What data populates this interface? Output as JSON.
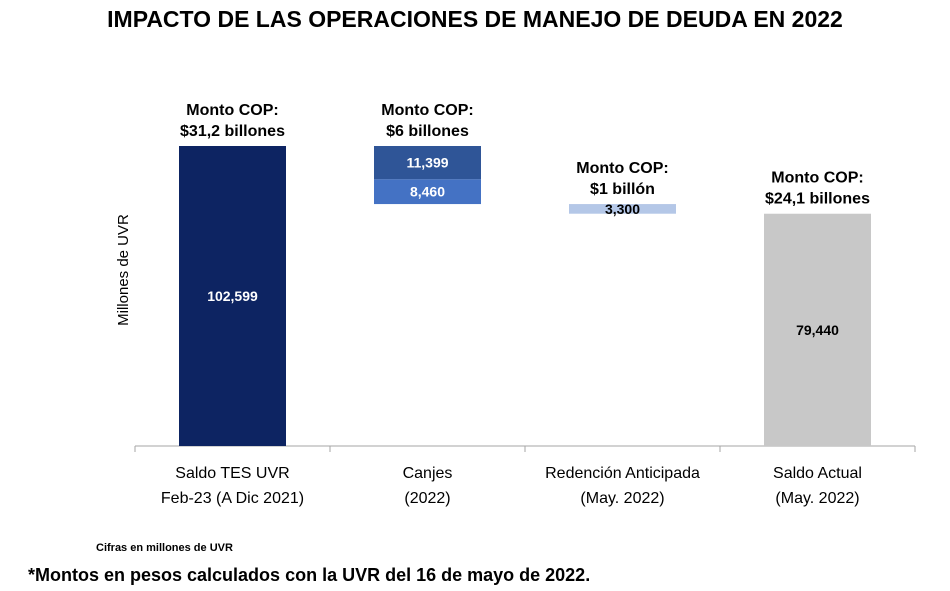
{
  "title": "IMPACTO DE LAS OPERACIONES DE MANEJO DE DEUDA EN 2022",
  "footnote_unit": "Cifras en millones de UVR",
  "footnote_main": "*Montos en pesos calculados con la UVR del 16 de mayo de 2022.",
  "colors": {
    "saldo_tes": "#0d2462",
    "canjes_top": "#2f5597",
    "canjes_bottom": "#4472c4",
    "redencion": "#b4c7e7",
    "saldo_actual": "#c8c8c8",
    "axis": "#a6a6a6"
  },
  "chart_data": {
    "type": "waterfall",
    "ylabel": "Millones de UVR",
    "categories": [
      [
        "Saldo TES UVR",
        "Feb-23 (A Dic 2021)"
      ],
      [
        "Canjes",
        "(2022)"
      ],
      [
        "Redención Anticipada",
        "(May. 2022)"
      ],
      [
        "Saldo Actual",
        "(May. 2022)"
      ]
    ],
    "bars": [
      {
        "category": 0,
        "segments": [
          {
            "value": 102599,
            "label": "102,599",
            "color_key": "saldo_tes",
            "label_color": "#ffffff"
          }
        ],
        "annotation": [
          "Monto COP:",
          "$31,2 billones"
        ]
      },
      {
        "category": 1,
        "segments": [
          {
            "value": 11399,
            "label": "11,399",
            "color_key": "canjes_top",
            "label_color": "#ffffff"
          },
          {
            "value": 8460,
            "label": "8,460",
            "color_key": "canjes_bottom",
            "label_color": "#ffffff"
          }
        ],
        "annotation": [
          "Monto COP:",
          "$6 billones"
        ]
      },
      {
        "category": 2,
        "segments": [
          {
            "value": 3300,
            "label": "3,300",
            "color_key": "redencion",
            "label_color": "#000000"
          }
        ],
        "annotation": [
          "Monto COP:",
          "$1 billón"
        ]
      },
      {
        "category": 3,
        "segments": [
          {
            "value": 79440,
            "label": "79,440",
            "color_key": "saldo_actual",
            "label_color": "#000000"
          }
        ],
        "annotation": [
          "Monto COP:",
          "$24,1 billones"
        ]
      }
    ],
    "ylim": [
      0,
      102599
    ]
  }
}
